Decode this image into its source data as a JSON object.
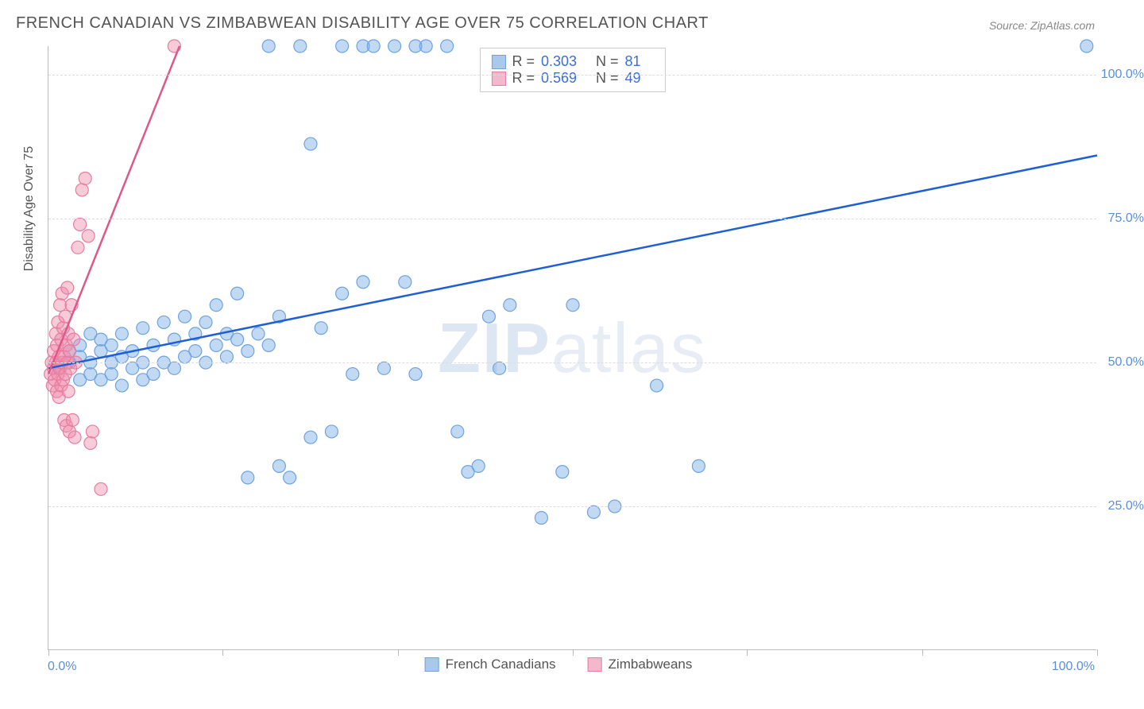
{
  "title": "FRENCH CANADIAN VS ZIMBABWEAN DISABILITY AGE OVER 75 CORRELATION CHART",
  "source": "Source: ZipAtlas.com",
  "y_axis_title": "Disability Age Over 75",
  "watermark": {
    "bold": "ZIP",
    "light": "atlas"
  },
  "chart": {
    "type": "scatter",
    "xlim": [
      0,
      100
    ],
    "ylim": [
      0,
      105
    ],
    "x_ticks": [
      0,
      16.6,
      33.3,
      50,
      66.6,
      83.3,
      100
    ],
    "y_ticks_labeled": [
      {
        "v": 25,
        "label": "25.0%"
      },
      {
        "v": 50,
        "label": "50.0%"
      },
      {
        "v": 75,
        "label": "75.0%"
      },
      {
        "v": 100,
        "label": "100.0%"
      }
    ],
    "x_label_start": "0.0%",
    "x_label_end": "100.0%",
    "background_color": "#ffffff",
    "grid_color": "#dddddd",
    "point_radius": 8,
    "series": [
      {
        "name": "French Canadians",
        "color_fill": "#a8c9ec",
        "color_stroke": "#6ea3e0",
        "R": "0.303",
        "N": "81",
        "trend": {
          "x1": 0,
          "y1": 49,
          "x2": 100,
          "y2": 86,
          "color": "#1f5fd6"
        },
        "points": [
          [
            1,
            49
          ],
          [
            2,
            50
          ],
          [
            2,
            52
          ],
          [
            3,
            47
          ],
          [
            3,
            51
          ],
          [
            3,
            53
          ],
          [
            4,
            48
          ],
          [
            4,
            50
          ],
          [
            4,
            55
          ],
          [
            5,
            47
          ],
          [
            5,
            52
          ],
          [
            5,
            54
          ],
          [
            6,
            48
          ],
          [
            6,
            50
          ],
          [
            6,
            53
          ],
          [
            7,
            46
          ],
          [
            7,
            51
          ],
          [
            7,
            55
          ],
          [
            8,
            49
          ],
          [
            8,
            52
          ],
          [
            9,
            47
          ],
          [
            9,
            50
          ],
          [
            9,
            56
          ],
          [
            10,
            48
          ],
          [
            10,
            53
          ],
          [
            11,
            50
          ],
          [
            11,
            57
          ],
          [
            12,
            49
          ],
          [
            12,
            54
          ],
          [
            13,
            51
          ],
          [
            13,
            58
          ],
          [
            14,
            52
          ],
          [
            14,
            55
          ],
          [
            15,
            50
          ],
          [
            15,
            57
          ],
          [
            16,
            53
          ],
          [
            16,
            60
          ],
          [
            17,
            51
          ],
          [
            17,
            55
          ],
          [
            18,
            54
          ],
          [
            18,
            62
          ],
          [
            19,
            52
          ],
          [
            19,
            30
          ],
          [
            20,
            55
          ],
          [
            21,
            53
          ],
          [
            21,
            105
          ],
          [
            22,
            58
          ],
          [
            22,
            32
          ],
          [
            23,
            30
          ],
          [
            24,
            105
          ],
          [
            25,
            37
          ],
          [
            25,
            88
          ],
          [
            26,
            56
          ],
          [
            27,
            38
          ],
          [
            28,
            62
          ],
          [
            28,
            105
          ],
          [
            29,
            48
          ],
          [
            30,
            64
          ],
          [
            30,
            105
          ],
          [
            31,
            105
          ],
          [
            32,
            49
          ],
          [
            33,
            105
          ],
          [
            34,
            64
          ],
          [
            35,
            48
          ],
          [
            35,
            105
          ],
          [
            36,
            105
          ],
          [
            38,
            105
          ],
          [
            39,
            38
          ],
          [
            40,
            31
          ],
          [
            41,
            32
          ],
          [
            42,
            58
          ],
          [
            43,
            49
          ],
          [
            44,
            60
          ],
          [
            47,
            23
          ],
          [
            49,
            31
          ],
          [
            50,
            60
          ],
          [
            52,
            24
          ],
          [
            54,
            25
          ],
          [
            58,
            46
          ],
          [
            62,
            32
          ],
          [
            99,
            105
          ]
        ]
      },
      {
        "name": "Zimbabweans",
        "color_fill": "#f4b8cc",
        "color_stroke": "#e77ca0",
        "R": "0.569",
        "N": "49",
        "trend": {
          "x1": 0,
          "y1": 48,
          "x2": 12.5,
          "y2": 105,
          "color": "#e0588a"
        },
        "points": [
          [
            0.2,
            48
          ],
          [
            0.3,
            50
          ],
          [
            0.4,
            46
          ],
          [
            0.5,
            49
          ],
          [
            0.5,
            52
          ],
          [
            0.6,
            47
          ],
          [
            0.7,
            50
          ],
          [
            0.7,
            55
          ],
          [
            0.8,
            45
          ],
          [
            0.8,
            53
          ],
          [
            0.9,
            48
          ],
          [
            0.9,
            57
          ],
          [
            1.0,
            44
          ],
          [
            1.0,
            51
          ],
          [
            1.1,
            49
          ],
          [
            1.1,
            60
          ],
          [
            1.2,
            46
          ],
          [
            1.2,
            54
          ],
          [
            1.3,
            50
          ],
          [
            1.3,
            62
          ],
          [
            1.4,
            47
          ],
          [
            1.4,
            56
          ],
          [
            1.5,
            40
          ],
          [
            1.5,
            51
          ],
          [
            1.6,
            48
          ],
          [
            1.6,
            58
          ],
          [
            1.7,
            39
          ],
          [
            1.7,
            53
          ],
          [
            1.8,
            50
          ],
          [
            1.8,
            63
          ],
          [
            1.9,
            45
          ],
          [
            1.9,
            55
          ],
          [
            2.0,
            38
          ],
          [
            2.0,
            52
          ],
          [
            2.1,
            49
          ],
          [
            2.2,
            60
          ],
          [
            2.3,
            40
          ],
          [
            2.4,
            54
          ],
          [
            2.5,
            37
          ],
          [
            2.6,
            50
          ],
          [
            2.8,
            70
          ],
          [
            3.0,
            74
          ],
          [
            3.2,
            80
          ],
          [
            3.5,
            82
          ],
          [
            3.8,
            72
          ],
          [
            4.0,
            36
          ],
          [
            4.2,
            38
          ],
          [
            5.0,
            28
          ],
          [
            12,
            105
          ]
        ]
      }
    ]
  },
  "legend": {
    "series1_label": "French Canadians",
    "series2_label": "Zimbabweans"
  },
  "stat_legend": {
    "r_label": "R =",
    "n_label": "N ="
  }
}
